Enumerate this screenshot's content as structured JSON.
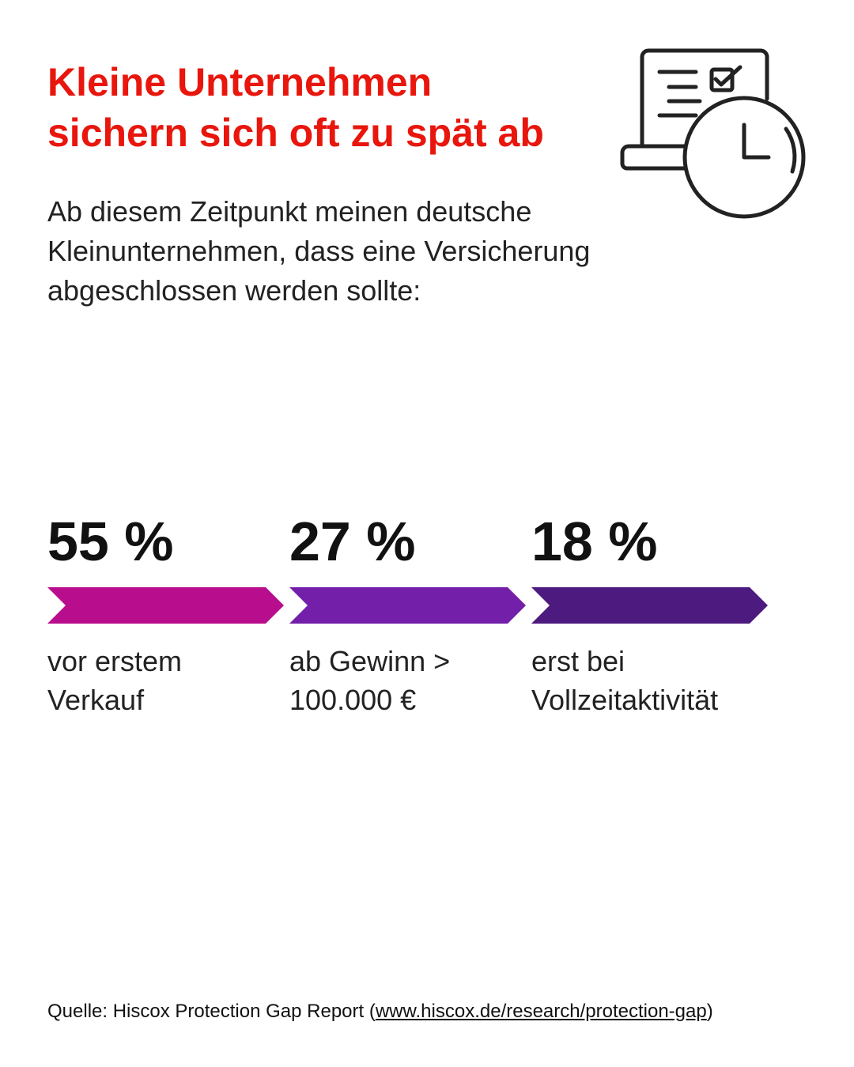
{
  "title_lines": [
    "Kleine Unternehmen",
    "sichern sich oft zu spät ab"
  ],
  "subtitle_lines": [
    "Ab diesem Zeitpunkt meinen deutsche",
    "Kleinunternehmen, dass eine Versicherung",
    "abgeschlossen werden sollte:"
  ],
  "items": [
    {
      "percent": "55 %",
      "label_lines": [
        "vor erstem",
        "Verkauf"
      ],
      "color": "#b80d8c"
    },
    {
      "percent": "27 %",
      "label_lines": [
        "ab Gewinn >",
        "100.000 €"
      ],
      "color": "#731faa"
    },
    {
      "percent": "18 %",
      "label_lines": [
        "erst bei",
        "Vollzeitaktivität"
      ],
      "color": "#4d1a80"
    }
  ],
  "source": {
    "prefix": "Quelle: Hiscox Protection Gap Report (",
    "link": "www.hiscox.de/research/protection-gap",
    "suffix": ")"
  }
}
